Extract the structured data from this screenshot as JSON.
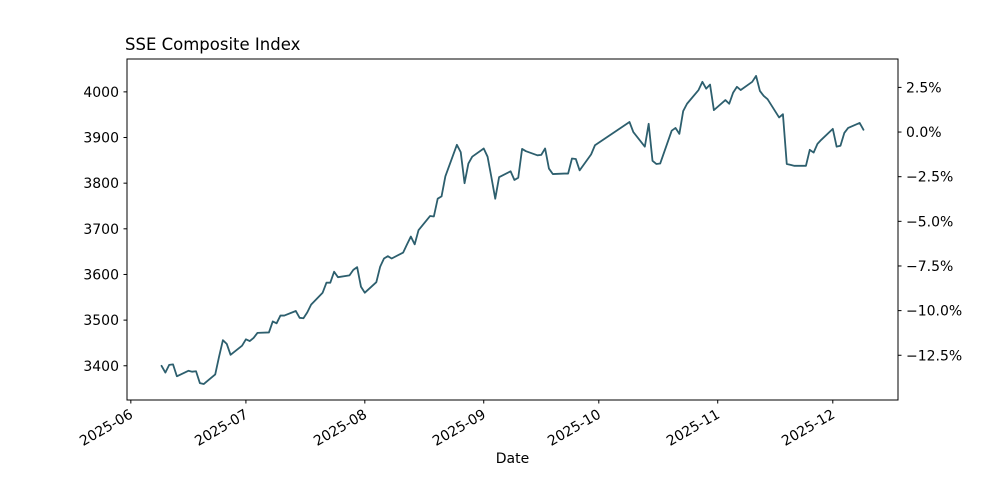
{
  "title": "SSE Composite Index",
  "xlabel": "Date",
  "colors": {
    "line": "#2d5f6e",
    "axis": "#000000",
    "background": "#ffffff"
  },
  "chart_data": {
    "type": "line",
    "title": "SSE Composite Index",
    "xlabel": "Date",
    "ylabel": "",
    "grid": false,
    "legend": "none",
    "ylim": [
      3325,
      4072
    ],
    "xlim_dates": [
      "2025-05-31",
      "2025-12-18"
    ],
    "left_yticks": [
      3400,
      3500,
      3600,
      3700,
      3800,
      3900,
      4000
    ],
    "right_yticks": [
      {
        "label": "2.5%",
        "pct": 2.5
      },
      {
        "label": "0.0%",
        "pct": 0.0
      },
      {
        "label": "−2.5%",
        "pct": -2.5
      },
      {
        "label": "−5.0%",
        "pct": -5.0
      },
      {
        "label": "−7.5%",
        "pct": -7.5
      },
      {
        "label": "−10.0%",
        "pct": -10.0
      },
      {
        "label": "−12.5%",
        "pct": -12.5
      }
    ],
    "right_axis_baseline": 3912,
    "x_ticks": [
      {
        "label": "2025-06",
        "date": "2025-06-01"
      },
      {
        "label": "2025-07",
        "date": "2025-07-01"
      },
      {
        "label": "2025-08",
        "date": "2025-08-01"
      },
      {
        "label": "2025-09",
        "date": "2025-09-01"
      },
      {
        "label": "2025-10",
        "date": "2025-10-01"
      },
      {
        "label": "2025-11",
        "date": "2025-11-01"
      },
      {
        "label": "2025-12",
        "date": "2025-12-01"
      }
    ],
    "series": [
      {
        "name": "SSE Composite Index",
        "dates": [
          "2025-06-09",
          "2025-06-10",
          "2025-06-11",
          "2025-06-12",
          "2025-06-13",
          "2025-06-16",
          "2025-06-17",
          "2025-06-18",
          "2025-06-19",
          "2025-06-20",
          "2025-06-23",
          "2025-06-24",
          "2025-06-25",
          "2025-06-26",
          "2025-06-27",
          "2025-06-30",
          "2025-07-01",
          "2025-07-02",
          "2025-07-03",
          "2025-07-04",
          "2025-07-07",
          "2025-07-08",
          "2025-07-09",
          "2025-07-10",
          "2025-07-11",
          "2025-07-14",
          "2025-07-15",
          "2025-07-16",
          "2025-07-17",
          "2025-07-18",
          "2025-07-21",
          "2025-07-22",
          "2025-07-23",
          "2025-07-24",
          "2025-07-25",
          "2025-07-28",
          "2025-07-29",
          "2025-07-30",
          "2025-07-31",
          "2025-08-01",
          "2025-08-04",
          "2025-08-05",
          "2025-08-06",
          "2025-08-07",
          "2025-08-08",
          "2025-08-11",
          "2025-08-12",
          "2025-08-13",
          "2025-08-14",
          "2025-08-15",
          "2025-08-18",
          "2025-08-19",
          "2025-08-20",
          "2025-08-21",
          "2025-08-22",
          "2025-08-25",
          "2025-08-26",
          "2025-08-27",
          "2025-08-28",
          "2025-08-29",
          "2025-09-01",
          "2025-09-02",
          "2025-09-03",
          "2025-09-04",
          "2025-09-05",
          "2025-09-08",
          "2025-09-09",
          "2025-09-10",
          "2025-09-11",
          "2025-09-12",
          "2025-09-15",
          "2025-09-16",
          "2025-09-17",
          "2025-09-18",
          "2025-09-19",
          "2025-09-22",
          "2025-09-23",
          "2025-09-24",
          "2025-09-25",
          "2025-09-26",
          "2025-09-29",
          "2025-09-30",
          "2025-10-09",
          "2025-10-10",
          "2025-10-13",
          "2025-10-14",
          "2025-10-15",
          "2025-10-16",
          "2025-10-17",
          "2025-10-20",
          "2025-10-21",
          "2025-10-22",
          "2025-10-23",
          "2025-10-24",
          "2025-10-27",
          "2025-10-28",
          "2025-10-29",
          "2025-10-30",
          "2025-10-31",
          "2025-11-03",
          "2025-11-04",
          "2025-11-05",
          "2025-11-06",
          "2025-11-07",
          "2025-11-10",
          "2025-11-11",
          "2025-11-12",
          "2025-11-13",
          "2025-11-14",
          "2025-11-17",
          "2025-11-18",
          "2025-11-19",
          "2025-11-20",
          "2025-11-21",
          "2025-11-24",
          "2025-11-25",
          "2025-11-26",
          "2025-11-27",
          "2025-11-28",
          "2025-12-01",
          "2025-12-02",
          "2025-12-03",
          "2025-12-04",
          "2025-12-05",
          "2025-12-08",
          "2025-12-09"
        ],
        "closes": [
          3400,
          3385,
          3402,
          3403,
          3377,
          3389,
          3387,
          3388,
          3362,
          3360,
          3381,
          3420,
          3456,
          3448,
          3424,
          3444,
          3458,
          3454,
          3461,
          3472,
          3473,
          3497,
          3493,
          3510,
          3510,
          3520,
          3505,
          3504,
          3517,
          3534,
          3560,
          3582,
          3582,
          3606,
          3594,
          3598,
          3610,
          3616,
          3573,
          3560,
          3583,
          3617,
          3635,
          3640,
          3635,
          3648,
          3666,
          3683,
          3666,
          3697,
          3728,
          3727,
          3766,
          3771,
          3815,
          3884,
          3868,
          3800,
          3843,
          3858,
          3876,
          3858,
          3813,
          3766,
          3813,
          3826,
          3807,
          3812,
          3875,
          3870,
          3861,
          3862,
          3876,
          3832,
          3820,
          3821,
          3821,
          3854,
          3853,
          3828,
          3863,
          3883,
          3934,
          3912,
          3880,
          3930,
          3849,
          3842,
          3843,
          3915,
          3921,
          3908,
          3958,
          3974,
          4004,
          4022,
          4007,
          4016,
          3960,
          3982,
          3974,
          3998,
          4011,
          4004,
          4022,
          4035,
          4002,
          3991,
          3984,
          3944,
          3951,
          3842,
          3840,
          3838,
          3838,
          3873,
          3867,
          3886,
          3895,
          3919,
          3880,
          3882,
          3910,
          3921,
          3932,
          3917
        ]
      }
    ]
  }
}
